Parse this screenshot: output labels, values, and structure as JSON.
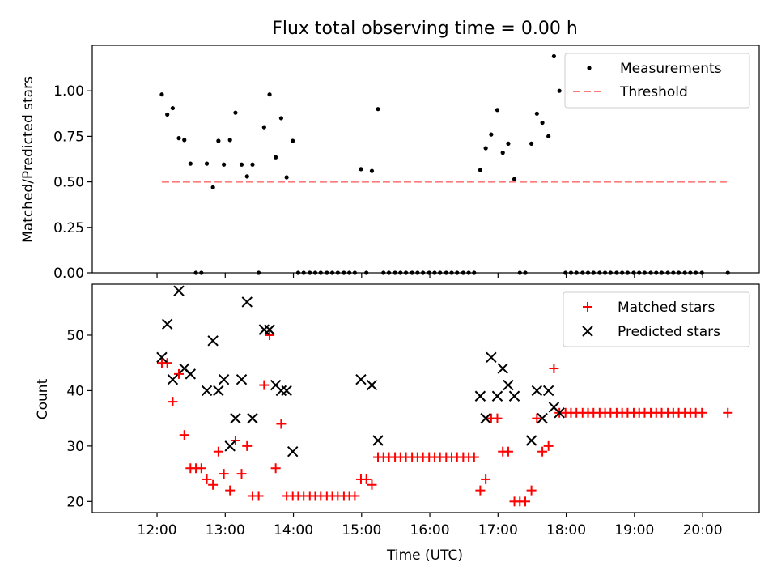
{
  "figure_title": "Flux total observing time = 0.00 h",
  "chart_data": [
    {
      "type": "scatter",
      "x_unit": "hours (UTC)",
      "xlim": [
        11.05,
        20.83
      ],
      "ylim": [
        0,
        1.25
      ],
      "ylabel": "Matched/Predicted stars",
      "yticks": [
        0.0,
        0.25,
        0.5,
        0.75,
        1.0
      ],
      "ytick_labels": [
        "0.00",
        "0.25",
        "0.50",
        "0.75",
        "1.00"
      ],
      "xticks": [
        12,
        13,
        14,
        15,
        16,
        17,
        18,
        19,
        20
      ],
      "legend": {
        "position": "upper right",
        "entries": [
          {
            "key": "measurements",
            "label": "Measurements",
            "color": "#000000",
            "marker": "dot"
          },
          {
            "key": "threshold",
            "label": "Threshold",
            "color": "#ff7a7a",
            "marker": "dashed-line"
          }
        ]
      },
      "threshold": {
        "value": 0.5,
        "x": [
          12.07,
          20.37
        ],
        "color": "#ff7a7a"
      },
      "series": [
        {
          "key": "measurements",
          "color": "#000000",
          "points": [
            [
              12.07,
              0.98
            ],
            [
              12.15,
              0.87
            ],
            [
              12.23,
              0.905
            ],
            [
              12.32,
              0.74
            ],
            [
              12.4,
              0.73
            ],
            [
              12.49,
              0.6
            ],
            [
              12.57,
              0.0
            ],
            [
              12.65,
              0.0
            ],
            [
              12.73,
              0.6
            ],
            [
              12.82,
              0.47
            ],
            [
              12.9,
              0.725
            ],
            [
              12.98,
              0.595
            ],
            [
              13.07,
              0.73
            ],
            [
              13.15,
              0.88
            ],
            [
              13.24,
              0.595
            ],
            [
              13.32,
              0.53
            ],
            [
              13.4,
              0.595
            ],
            [
              13.49,
              0.0
            ],
            [
              13.57,
              0.8
            ],
            [
              13.65,
              0.98
            ],
            [
              13.74,
              0.635
            ],
            [
              13.82,
              0.85
            ],
            [
              13.9,
              0.525
            ],
            [
              13.99,
              0.725
            ],
            [
              14.07,
              0.0
            ],
            [
              14.15,
              0.0
            ],
            [
              14.24,
              0.0
            ],
            [
              14.32,
              0.0
            ],
            [
              14.4,
              0.0
            ],
            [
              14.49,
              0.0
            ],
            [
              14.57,
              0.0
            ],
            [
              14.65,
              0.0
            ],
            [
              14.74,
              0.0
            ],
            [
              14.82,
              0.0
            ],
            [
              14.9,
              0.0
            ],
            [
              14.99,
              0.57
            ],
            [
              15.07,
              0.0
            ],
            [
              15.15,
              0.56
            ],
            [
              15.24,
              0.9
            ],
            [
              15.32,
              0.0
            ],
            [
              15.4,
              0.0
            ],
            [
              15.49,
              0.0
            ],
            [
              15.57,
              0.0
            ],
            [
              15.65,
              0.0
            ],
            [
              15.74,
              0.0
            ],
            [
              15.82,
              0.0
            ],
            [
              15.9,
              0.0
            ],
            [
              15.99,
              0.0
            ],
            [
              16.07,
              0.0
            ],
            [
              16.15,
              0.0
            ],
            [
              16.24,
              0.0
            ],
            [
              16.32,
              0.0
            ],
            [
              16.4,
              0.0
            ],
            [
              16.49,
              0.0
            ],
            [
              16.57,
              0.0
            ],
            [
              16.65,
              0.0
            ],
            [
              16.74,
              0.565
            ],
            [
              16.82,
              0.685
            ],
            [
              16.9,
              0.76
            ],
            [
              16.99,
              0.895
            ],
            [
              17.07,
              0.66
            ],
            [
              17.15,
              0.71
            ],
            [
              17.24,
              0.515
            ],
            [
              17.32,
              0.0
            ],
            [
              17.4,
              0.0
            ],
            [
              17.49,
              0.71
            ],
            [
              17.57,
              0.875
            ],
            [
              17.65,
              0.825
            ],
            [
              17.74,
              0.75
            ],
            [
              17.82,
              1.19
            ],
            [
              17.9,
              1.0
            ],
            [
              17.99,
              0.0
            ],
            [
              18.07,
              0.0
            ],
            [
              18.15,
              0.0
            ],
            [
              18.24,
              0.0
            ],
            [
              18.32,
              0.0
            ],
            [
              18.4,
              0.0
            ],
            [
              18.49,
              0.0
            ],
            [
              18.57,
              0.0
            ],
            [
              18.65,
              0.0
            ],
            [
              18.74,
              0.0
            ],
            [
              18.82,
              0.0
            ],
            [
              18.9,
              0.0
            ],
            [
              18.99,
              0.0
            ],
            [
              19.07,
              0.0
            ],
            [
              19.15,
              0.0
            ],
            [
              19.24,
              0.0
            ],
            [
              19.32,
              0.0
            ],
            [
              19.4,
              0.0
            ],
            [
              19.49,
              0.0
            ],
            [
              19.57,
              0.0
            ],
            [
              19.65,
              0.0
            ],
            [
              19.74,
              0.0
            ],
            [
              19.82,
              0.0
            ],
            [
              19.9,
              0.0
            ],
            [
              19.99,
              0.0
            ],
            [
              20.37,
              0.0
            ]
          ]
        }
      ]
    },
    {
      "type": "scatter",
      "x_unit": "hours (UTC)",
      "xlim": [
        11.05,
        20.83
      ],
      "ylim": [
        18,
        59.2
      ],
      "xlabel": "Time (UTC)",
      "ylabel": "Count",
      "yticks": [
        20,
        30,
        40,
        50
      ],
      "ytick_labels": [
        "20",
        "30",
        "40",
        "50"
      ],
      "xticks": [
        12,
        13,
        14,
        15,
        16,
        17,
        18,
        19,
        20
      ],
      "xtick_labels": [
        "12:00",
        "13:00",
        "14:00",
        "15:00",
        "16:00",
        "17:00",
        "18:00",
        "19:00",
        "20:00"
      ],
      "legend": {
        "position": "upper right",
        "entries": [
          {
            "key": "matched",
            "label": "Matched stars",
            "color": "#ff0000",
            "marker": "plus"
          },
          {
            "key": "predicted",
            "label": "Predicted stars",
            "color": "#000000",
            "marker": "x"
          }
        ]
      },
      "series": [
        {
          "key": "matched",
          "marker": "plus",
          "color": "#ff0000",
          "points": [
            [
              12.07,
              45
            ],
            [
              12.15,
              45
            ],
            [
              12.23,
              38
            ],
            [
              12.32,
              43
            ],
            [
              12.4,
              32
            ],
            [
              12.49,
              26
            ],
            [
              12.57,
              26
            ],
            [
              12.65,
              26
            ],
            [
              12.73,
              24
            ],
            [
              12.82,
              23
            ],
            [
              12.9,
              29
            ],
            [
              12.98,
              25
            ],
            [
              13.07,
              22
            ],
            [
              13.15,
              31
            ],
            [
              13.24,
              25
            ],
            [
              13.32,
              30
            ],
            [
              13.4,
              21
            ],
            [
              13.49,
              21
            ],
            [
              13.57,
              41
            ],
            [
              13.65,
              50
            ],
            [
              13.74,
              26
            ],
            [
              13.82,
              34
            ],
            [
              13.9,
              21
            ],
            [
              13.99,
              21
            ],
            [
              14.07,
              21
            ],
            [
              14.15,
              21
            ],
            [
              14.24,
              21
            ],
            [
              14.32,
              21
            ],
            [
              14.4,
              21
            ],
            [
              14.49,
              21
            ],
            [
              14.57,
              21
            ],
            [
              14.65,
              21
            ],
            [
              14.74,
              21
            ],
            [
              14.82,
              21
            ],
            [
              14.9,
              21
            ],
            [
              14.99,
              24
            ],
            [
              15.07,
              24
            ],
            [
              15.15,
              23
            ],
            [
              15.24,
              28
            ],
            [
              15.32,
              28
            ],
            [
              15.4,
              28
            ],
            [
              15.49,
              28
            ],
            [
              15.57,
              28
            ],
            [
              15.65,
              28
            ],
            [
              15.74,
              28
            ],
            [
              15.82,
              28
            ],
            [
              15.9,
              28
            ],
            [
              15.99,
              28
            ],
            [
              16.07,
              28
            ],
            [
              16.15,
              28
            ],
            [
              16.24,
              28
            ],
            [
              16.32,
              28
            ],
            [
              16.4,
              28
            ],
            [
              16.49,
              28
            ],
            [
              16.57,
              28
            ],
            [
              16.65,
              28
            ],
            [
              16.74,
              22
            ],
            [
              16.82,
              24
            ],
            [
              16.9,
              35
            ],
            [
              16.99,
              35
            ],
            [
              17.07,
              29
            ],
            [
              17.15,
              29
            ],
            [
              17.24,
              20
            ],
            [
              17.32,
              20
            ],
            [
              17.4,
              20
            ],
            [
              17.49,
              22
            ],
            [
              17.57,
              35
            ],
            [
              17.65,
              29
            ],
            [
              17.74,
              30
            ],
            [
              17.82,
              44
            ],
            [
              17.9,
              36
            ],
            [
              17.99,
              36
            ],
            [
              18.07,
              36
            ],
            [
              18.15,
              36
            ],
            [
              18.24,
              36
            ],
            [
              18.32,
              36
            ],
            [
              18.4,
              36
            ],
            [
              18.49,
              36
            ],
            [
              18.57,
              36
            ],
            [
              18.65,
              36
            ],
            [
              18.74,
              36
            ],
            [
              18.82,
              36
            ],
            [
              18.9,
              36
            ],
            [
              18.99,
              36
            ],
            [
              19.07,
              36
            ],
            [
              19.15,
              36
            ],
            [
              19.24,
              36
            ],
            [
              19.32,
              36
            ],
            [
              19.4,
              36
            ],
            [
              19.49,
              36
            ],
            [
              19.57,
              36
            ],
            [
              19.65,
              36
            ],
            [
              19.74,
              36
            ],
            [
              19.82,
              36
            ],
            [
              19.9,
              36
            ],
            [
              19.99,
              36
            ],
            [
              20.37,
              36
            ]
          ]
        },
        {
          "key": "predicted",
          "marker": "x",
          "color": "#000000",
          "points": [
            [
              12.07,
              46
            ],
            [
              12.15,
              52
            ],
            [
              12.23,
              42
            ],
            [
              12.32,
              58
            ],
            [
              12.4,
              44
            ],
            [
              12.49,
              43
            ],
            [
              12.73,
              40
            ],
            [
              12.82,
              49
            ],
            [
              12.9,
              40
            ],
            [
              12.98,
              42
            ],
            [
              13.07,
              30
            ],
            [
              13.15,
              35
            ],
            [
              13.24,
              42
            ],
            [
              13.32,
              56
            ],
            [
              13.4,
              35
            ],
            [
              13.57,
              51
            ],
            [
              13.65,
              51
            ],
            [
              13.74,
              41
            ],
            [
              13.82,
              40
            ],
            [
              13.9,
              40
            ],
            [
              13.99,
              29
            ],
            [
              14.99,
              42
            ],
            [
              15.15,
              41
            ],
            [
              15.24,
              31
            ],
            [
              16.74,
              39
            ],
            [
              16.82,
              35
            ],
            [
              16.9,
              46
            ],
            [
              16.99,
              39
            ],
            [
              17.07,
              44
            ],
            [
              17.15,
              41
            ],
            [
              17.24,
              39
            ],
            [
              17.49,
              31
            ],
            [
              17.57,
              40
            ],
            [
              17.65,
              35
            ],
            [
              17.74,
              40
            ],
            [
              17.82,
              37
            ],
            [
              17.9,
              36
            ]
          ]
        }
      ]
    }
  ]
}
